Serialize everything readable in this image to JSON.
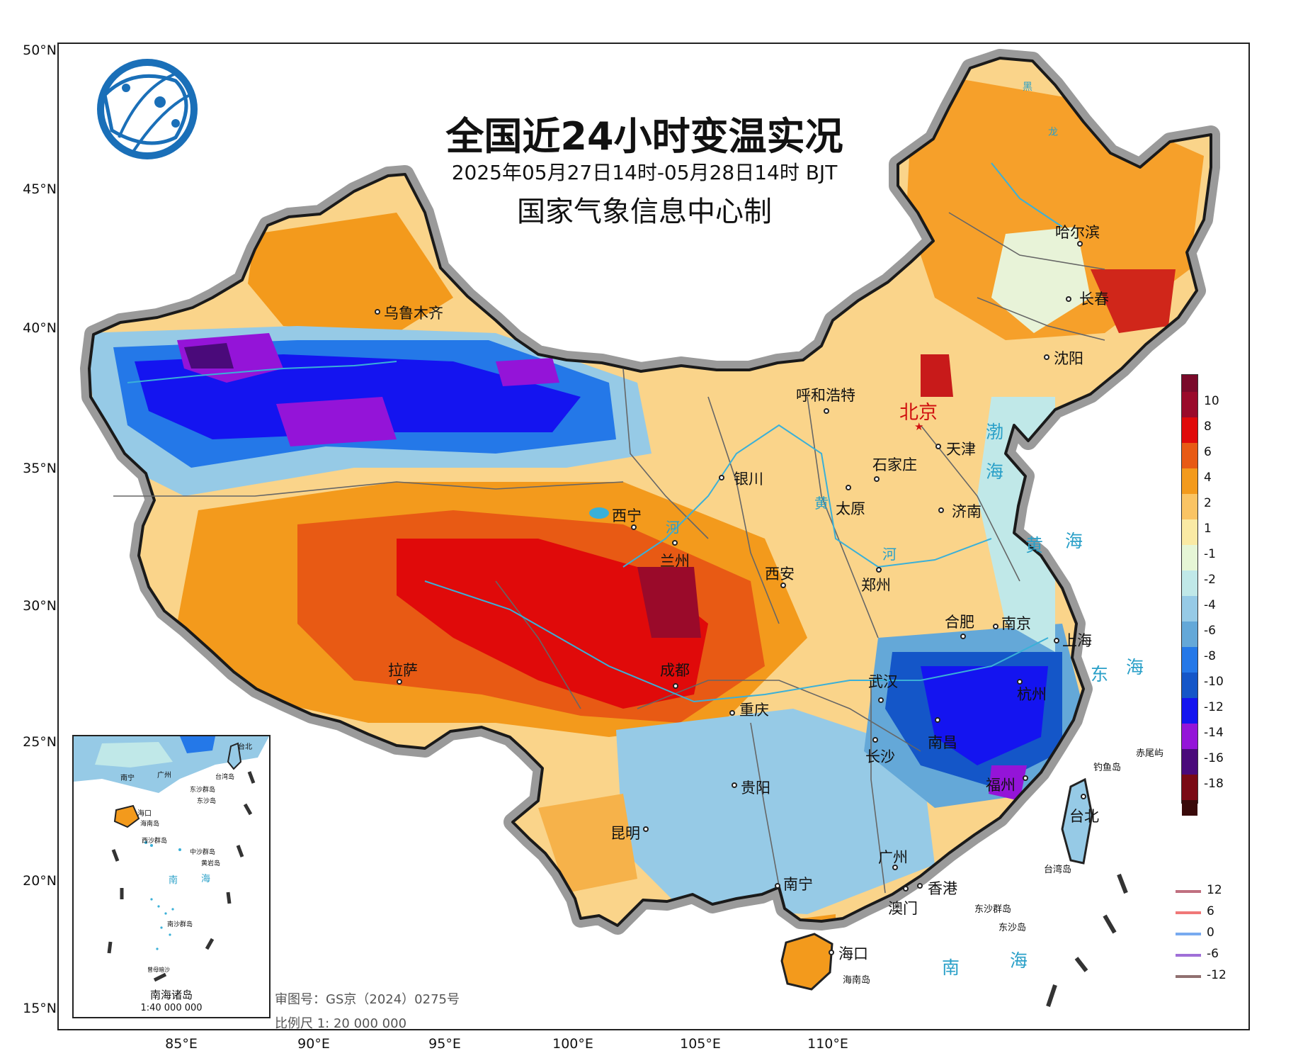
{
  "title": "全国近24小时变温实况",
  "subtitle": "2025年05月27日14时-05月28日14时 BJT",
  "maker": "国家气象信息中心制",
  "lat_labels": [
    "50°N",
    "45°N",
    "40°N",
    "35°N",
    "30°N",
    "25°N",
    "20°N",
    "15°N"
  ],
  "lon_labels": [
    "85°E",
    "90°E",
    "95°E",
    "100°E",
    "105°E",
    "110°E"
  ],
  "cities": [
    {
      "name": "乌鲁木齐"
    },
    {
      "name": "哈尔滨"
    },
    {
      "name": "长春"
    },
    {
      "name": "沈阳"
    },
    {
      "name": "呼和浩特"
    },
    {
      "name": "北京"
    },
    {
      "name": "天津"
    },
    {
      "name": "石家庄"
    },
    {
      "name": "银川"
    },
    {
      "name": "太原"
    },
    {
      "name": "济南"
    },
    {
      "name": "西宁"
    },
    {
      "name": "兰州"
    },
    {
      "name": "西安"
    },
    {
      "name": "郑州"
    },
    {
      "name": "合肥"
    },
    {
      "name": "南京"
    },
    {
      "name": "上海"
    },
    {
      "name": "拉萨"
    },
    {
      "name": "成都"
    },
    {
      "name": "武汉"
    },
    {
      "name": "杭州"
    },
    {
      "name": "重庆"
    },
    {
      "name": "长沙"
    },
    {
      "name": "南昌"
    },
    {
      "name": "福州"
    },
    {
      "name": "贵阳"
    },
    {
      "name": "台北"
    },
    {
      "name": "昆明"
    },
    {
      "name": "广州"
    },
    {
      "name": "南宁"
    },
    {
      "name": "香港"
    },
    {
      "name": "澳门"
    },
    {
      "name": "海口"
    }
  ],
  "seas": {
    "bohai_1": "渤",
    "bohai_2": "海",
    "yellow_1": "黄",
    "yellow_2": "海",
    "east_1": "东",
    "east_2": "海",
    "south_1": "南",
    "south_2": "海"
  },
  "islands": {
    "diaoyu": "钓鱼岛",
    "chiwei": "赤尾屿",
    "taiwan": "台湾岛",
    "dongsha_qd": "东沙群岛",
    "dongsha": "东沙岛",
    "hainan": "海南岛"
  },
  "river_labels": {
    "hei": "黑",
    "long": "龙",
    "huang": "黄",
    "he1": "河",
    "he2": "河"
  },
  "legend": {
    "colorbar": [
      {
        "label": "10",
        "color": "#9a0a2a"
      },
      {
        "label": "8",
        "color": "#e00a0a"
      },
      {
        "label": "6",
        "color": "#e85a14"
      },
      {
        "label": "4",
        "color": "#f39a1c"
      },
      {
        "label": "2",
        "color": "#fac464"
      },
      {
        "label": "1",
        "color": "#faeaa4"
      },
      {
        "label": "-1",
        "color": "#e6f6d6"
      },
      {
        "label": "-2",
        "color": "#c0e8e8"
      },
      {
        "label": "-4",
        "color": "#96cae6"
      },
      {
        "label": "-6",
        "color": "#64a8d8"
      },
      {
        "label": "-8",
        "color": "#2478e8"
      },
      {
        "label": "-10",
        "color": "#1456c8"
      },
      {
        "label": "-12",
        "color": "#1414f0"
      },
      {
        "label": "-14",
        "color": "#9414d8"
      },
      {
        "label": "-16",
        "color": "#4a0a7a"
      },
      {
        "label": "-18",
        "color": "#7a0a14"
      }
    ],
    "colorbar_extra": {
      "top": "#7a0a2a",
      "bottom": "#3a0a0a"
    },
    "lines": [
      {
        "label": "12",
        "color": "#c07080"
      },
      {
        "label": "6",
        "color": "#f07878"
      },
      {
        "label": "0",
        "color": "#78aaf0"
      },
      {
        "label": "-6",
        "color": "#a070d8"
      },
      {
        "label": "-12",
        "color": "#907070"
      }
    ]
  },
  "footer": {
    "approval": "审图号：GS京（2024）0275号",
    "scale": "比例尺 1: 20 000 000"
  },
  "inset": {
    "title": "南海诸岛",
    "scale": "1:40 000 000",
    "labels": {
      "nanning": "南宁",
      "guangzhou": "广州",
      "taibei": "台北",
      "taiwan": "台湾岛",
      "dongsha_qd": "东沙群岛",
      "dongsha": "东沙岛",
      "haikou": "海口",
      "hainan": "海南岛",
      "xisha": "西沙群岛",
      "zhongsha": "中沙群岛",
      "huangyan": "黄岩岛",
      "nan": "南",
      "hai": "海",
      "nansha": "南沙群岛",
      "zengmu": "曾母暗沙"
    }
  },
  "colors": {
    "brand_blue": "#1a6fb8",
    "sea_label": "#2aa0c8",
    "capital": "#d01010"
  }
}
